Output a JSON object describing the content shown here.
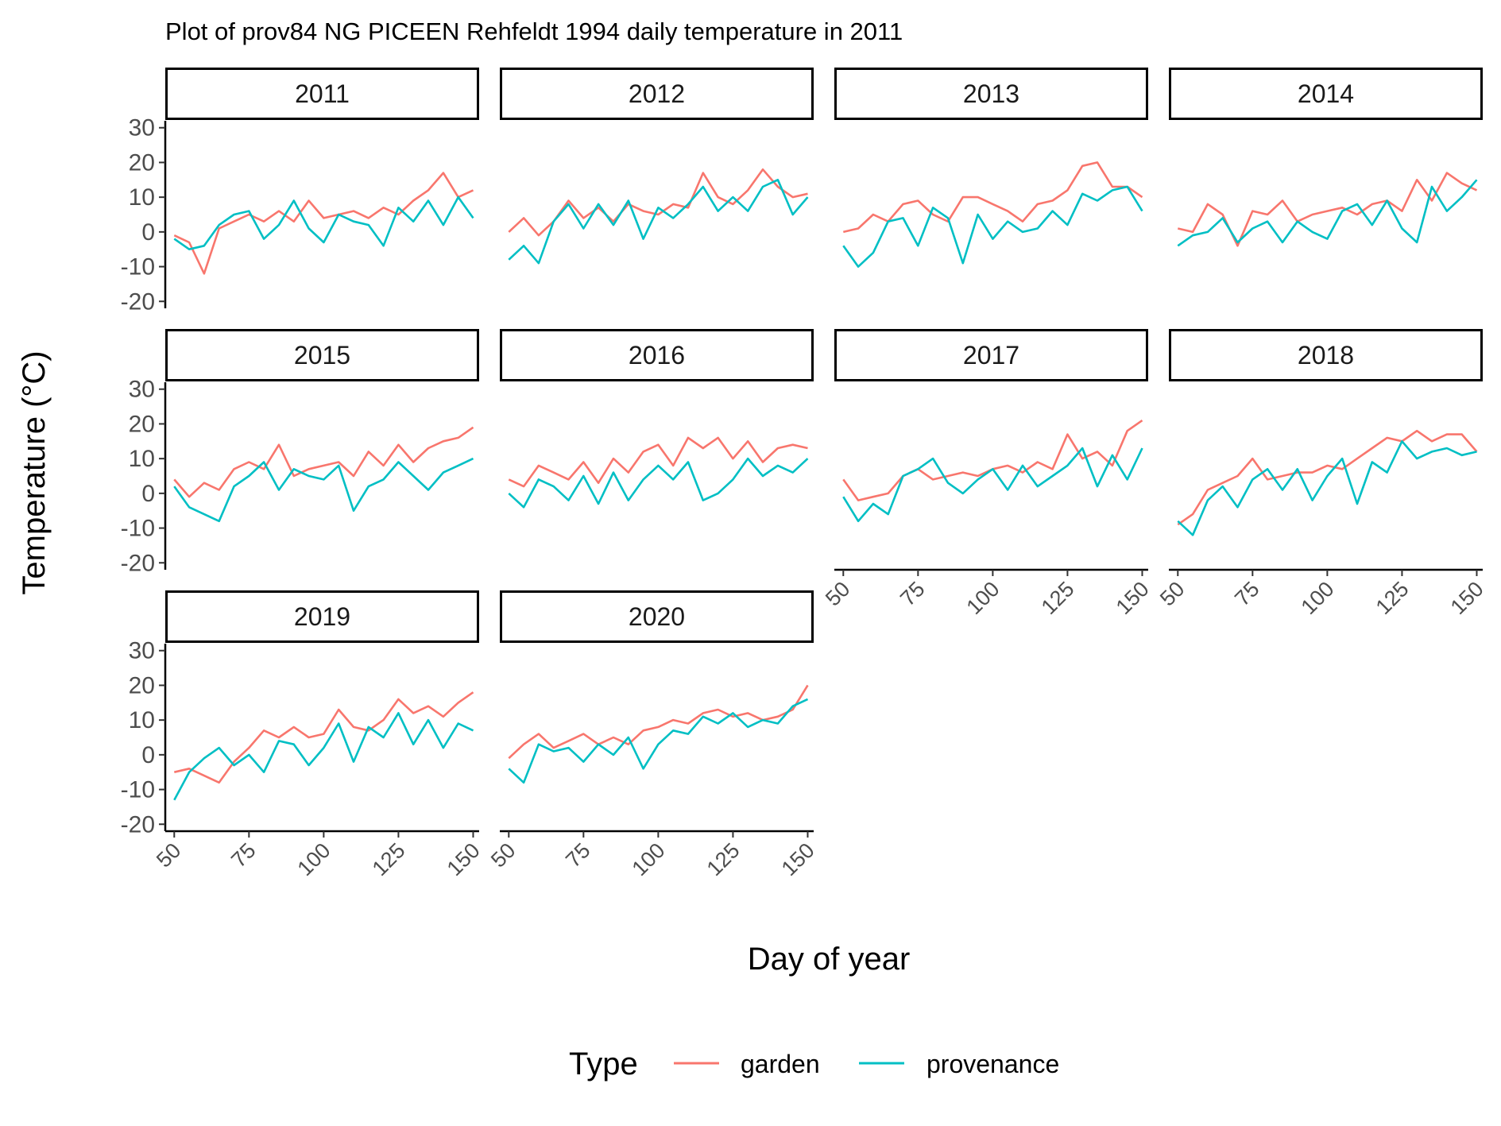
{
  "chart_data": {
    "type": "line",
    "title": "Plot of prov84 NG PICEEN Rehfeldt 1994 daily temperature in 2011",
    "xlabel": "Day of year",
    "ylabel": "Temperature (°C)",
    "xlim": [
      47,
      152
    ],
    "ylim": [
      -22,
      32
    ],
    "x_ticks": [
      50,
      75,
      100,
      125,
      150
    ],
    "y_ticks": [
      -20,
      -10,
      0,
      10,
      20,
      30
    ],
    "grid": false,
    "legend": {
      "title": "Type",
      "position": "bottom",
      "entries": [
        "garden",
        "provenance"
      ]
    },
    "colors": {
      "garden": "#F8766D",
      "provenance": "#00BFC4"
    },
    "series_x": {
      "start": 50,
      "step": 5
    },
    "facets": [
      {
        "label": "2011",
        "series": [
          {
            "name": "garden",
            "values": [
              -1,
              -3,
              -12,
              1,
              3,
              5,
              3,
              6,
              3,
              9,
              4,
              5,
              6,
              4,
              7,
              5,
              9,
              12,
              17,
              10,
              12
            ]
          },
          {
            "name": "provenance",
            "values": [
              -2,
              -5,
              -4,
              2,
              5,
              6,
              -2,
              2,
              9,
              1,
              -3,
              5,
              3,
              2,
              -4,
              7,
              3,
              9,
              2,
              10,
              4
            ]
          }
        ]
      },
      {
        "label": "2012",
        "series": [
          {
            "name": "garden",
            "values": [
              0,
              4,
              -1,
              3,
              9,
              4,
              7,
              3,
              8,
              6,
              5,
              8,
              7,
              17,
              10,
              8,
              12,
              18,
              13,
              10,
              11
            ]
          },
          {
            "name": "provenance",
            "values": [
              -8,
              -4,
              -9,
              3,
              8,
              1,
              8,
              2,
              9,
              -2,
              7,
              4,
              8,
              13,
              6,
              10,
              6,
              13,
              15,
              5,
              10
            ]
          }
        ]
      },
      {
        "label": "2013",
        "series": [
          {
            "name": "garden",
            "values": [
              0,
              1,
              5,
              3,
              8,
              9,
              5,
              3,
              10,
              10,
              8,
              6,
              3,
              8,
              9,
              12,
              19,
              20,
              13,
              13,
              10
            ]
          },
          {
            "name": "provenance",
            "values": [
              -4,
              -10,
              -6,
              3,
              4,
              -4,
              7,
              4,
              -9,
              5,
              -2,
              3,
              0,
              1,
              6,
              2,
              11,
              9,
              12,
              13,
              6
            ]
          }
        ]
      },
      {
        "label": "2014",
        "series": [
          {
            "name": "garden",
            "values": [
              1,
              0,
              8,
              5,
              -4,
              6,
              5,
              9,
              3,
              5,
              6,
              7,
              5,
              8,
              9,
              6,
              15,
              9,
              17,
              14,
              12
            ]
          },
          {
            "name": "provenance",
            "values": [
              -4,
              -1,
              0,
              4,
              -3,
              1,
              3,
              -3,
              3,
              0,
              -2,
              6,
              8,
              2,
              9,
              1,
              -3,
              13,
              6,
              10,
              15
            ]
          }
        ]
      },
      {
        "label": "2015",
        "series": [
          {
            "name": "garden",
            "values": [
              4,
              -1,
              3,
              1,
              7,
              9,
              7,
              14,
              5,
              7,
              8,
              9,
              5,
              12,
              8,
              14,
              9,
              13,
              15,
              16,
              19
            ]
          },
          {
            "name": "provenance",
            "values": [
              2,
              -4,
              -6,
              -8,
              2,
              5,
              9,
              1,
              7,
              5,
              4,
              8,
              -5,
              2,
              4,
              9,
              5,
              1,
              6,
              8,
              10
            ]
          }
        ]
      },
      {
        "label": "2016",
        "series": [
          {
            "name": "garden",
            "values": [
              4,
              2,
              8,
              6,
              4,
              9,
              3,
              10,
              6,
              12,
              14,
              8,
              16,
              13,
              16,
              10,
              15,
              9,
              13,
              14,
              13
            ]
          },
          {
            "name": "provenance",
            "values": [
              0,
              -4,
              4,
              2,
              -2,
              5,
              -3,
              6,
              -2,
              4,
              8,
              4,
              9,
              -2,
              0,
              4,
              10,
              5,
              8,
              6,
              10
            ]
          }
        ]
      },
      {
        "label": "2017",
        "series": [
          {
            "name": "garden",
            "values": [
              4,
              -2,
              -1,
              0,
              5,
              7,
              4,
              5,
              6,
              5,
              7,
              8,
              6,
              9,
              7,
              17,
              10,
              12,
              8,
              18,
              21
            ]
          },
          {
            "name": "provenance",
            "values": [
              -1,
              -8,
              -3,
              -6,
              5,
              7,
              10,
              3,
              0,
              4,
              7,
              1,
              8,
              2,
              5,
              8,
              13,
              2,
              11,
              4,
              13
            ]
          }
        ]
      },
      {
        "label": "2018",
        "series": [
          {
            "name": "garden",
            "values": [
              -9,
              -6,
              1,
              3,
              5,
              10,
              4,
              5,
              6,
              6,
              8,
              7,
              10,
              13,
              16,
              15,
              18,
              15,
              17,
              17,
              12
            ]
          },
          {
            "name": "provenance",
            "values": [
              -8,
              -12,
              -2,
              2,
              -4,
              4,
              7,
              1,
              7,
              -2,
              5,
              10,
              -3,
              9,
              6,
              15,
              10,
              12,
              13,
              11,
              12
            ]
          }
        ]
      },
      {
        "label": "2019",
        "series": [
          {
            "name": "garden",
            "values": [
              -5,
              -4,
              -6,
              -8,
              -2,
              2,
              7,
              5,
              8,
              5,
              6,
              13,
              8,
              7,
              10,
              16,
              12,
              14,
              11,
              15,
              18
            ]
          },
          {
            "name": "provenance",
            "values": [
              -13,
              -5,
              -1,
              2,
              -3,
              0,
              -5,
              4,
              3,
              -3,
              2,
              9,
              -2,
              8,
              5,
              12,
              3,
              10,
              2,
              9,
              7
            ]
          }
        ]
      },
      {
        "label": "2020",
        "series": [
          {
            "name": "garden",
            "values": [
              -1,
              3,
              6,
              2,
              4,
              6,
              3,
              5,
              3,
              7,
              8,
              10,
              9,
              12,
              13,
              11,
              12,
              10,
              11,
              13,
              20
            ]
          },
          {
            "name": "provenance",
            "values": [
              -4,
              -8,
              3,
              1,
              2,
              -2,
              3,
              0,
              5,
              -4,
              3,
              7,
              6,
              11,
              9,
              12,
              8,
              10,
              9,
              14,
              16
            ]
          }
        ]
      }
    ]
  }
}
